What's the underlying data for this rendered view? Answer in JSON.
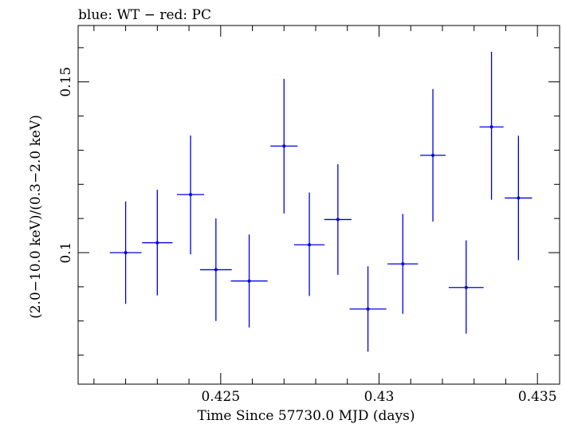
{
  "chart_data": {
    "type": "scatter",
    "title": "blue: WT − red: PC",
    "xlabel": "Time Since 57730.0 MJD (days)",
    "ylabel": "(2.0−10.0 keV)/(0.3−2.0 keV)",
    "xlim": [
      0.4205,
      0.4357
    ],
    "ylim": [
      0.0615,
      0.1665
    ],
    "x_ticks": [
      {
        "value": 0.425,
        "label": "0.425"
      },
      {
        "value": 0.43,
        "label": "0.43"
      },
      {
        "value": 0.435,
        "label": "0.435"
      }
    ],
    "y_ticks": [
      {
        "value": 0.1,
        "label": "0.1"
      },
      {
        "value": 0.15,
        "label": "0.15"
      }
    ],
    "grid": false,
    "series": [
      {
        "color": "#0000e6",
        "points": [
          {
            "x": 0.422,
            "y": 0.1,
            "xerr": 0.0005,
            "yerr_lo": 0.015,
            "yerr_hi": 0.015
          },
          {
            "x": 0.423,
            "y": 0.1029,
            "xerr": 0.00048,
            "yerr_lo": 0.0154,
            "yerr_hi": 0.0155
          },
          {
            "x": 0.42405,
            "y": 0.117,
            "xerr": 0.00043,
            "yerr_lo": 0.0175,
            "yerr_hi": 0.0173
          },
          {
            "x": 0.42485,
            "y": 0.095,
            "xerr": 0.0005,
            "yerr_lo": 0.015,
            "yerr_hi": 0.015
          },
          {
            "x": 0.4259,
            "y": 0.0917,
            "xerr": 0.00058,
            "yerr_lo": 0.0136,
            "yerr_hi": 0.0136
          },
          {
            "x": 0.427,
            "y": 0.1312,
            "xerr": 0.00043,
            "yerr_lo": 0.0197,
            "yerr_hi": 0.0197
          },
          {
            "x": 0.4278,
            "y": 0.1023,
            "xerr": 0.00048,
            "yerr_lo": 0.015,
            "yerr_hi": 0.0153
          },
          {
            "x": 0.4287,
            "y": 0.1097,
            "xerr": 0.00043,
            "yerr_lo": 0.0162,
            "yerr_hi": 0.0162
          },
          {
            "x": 0.42965,
            "y": 0.0835,
            "xerr": 0.00058,
            "yerr_lo": 0.0125,
            "yerr_hi": 0.0125
          },
          {
            "x": 0.43075,
            "y": 0.0967,
            "xerr": 0.00048,
            "yerr_lo": 0.0146,
            "yerr_hi": 0.0146
          },
          {
            "x": 0.4317,
            "y": 0.1285,
            "xerr": 0.0004,
            "yerr_lo": 0.0194,
            "yerr_hi": 0.0194
          },
          {
            "x": 0.43275,
            "y": 0.0898,
            "xerr": 0.00055,
            "yerr_lo": 0.0135,
            "yerr_hi": 0.0138
          },
          {
            "x": 0.43355,
            "y": 0.1368,
            "xerr": 0.00038,
            "yerr_lo": 0.0213,
            "yerr_hi": 0.022
          },
          {
            "x": 0.4344,
            "y": 0.116,
            "xerr": 0.00043,
            "yerr_lo": 0.0182,
            "yerr_hi": 0.0182
          }
        ]
      }
    ]
  }
}
